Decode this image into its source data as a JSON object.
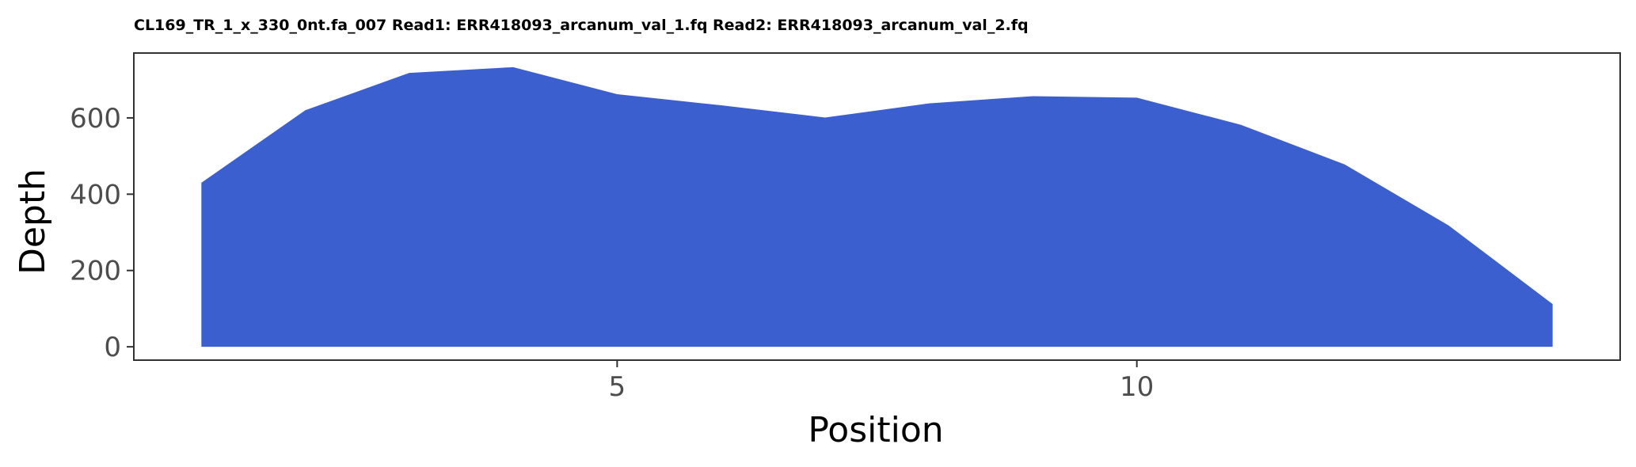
{
  "chart_data": {
    "type": "area",
    "title": "CL169_TR_1_x_330_0nt.fa_007 Read1: ERR418093_arcanum_val_1.fq Read2: ERR418093_arcanum_val_2.fq",
    "xlabel": "Position",
    "ylabel": "Depth",
    "x": [
      1,
      2,
      3,
      4,
      5,
      6,
      7,
      8,
      9,
      10,
      11,
      12,
      13,
      14
    ],
    "series": [
      {
        "values": [
          430,
          620,
          718,
          733,
          662,
          633,
          601,
          638,
          657,
          653,
          582,
          478,
          318,
          112
        ]
      }
    ],
    "xlim": [
      0.35,
      14.65
    ],
    "ylim": [
      -35,
      770
    ],
    "xticks": [
      5,
      10
    ],
    "yticks": [
      0,
      200,
      400,
      600
    ],
    "fill_color": "#3b5fce",
    "grid": false,
    "legend": "none"
  }
}
